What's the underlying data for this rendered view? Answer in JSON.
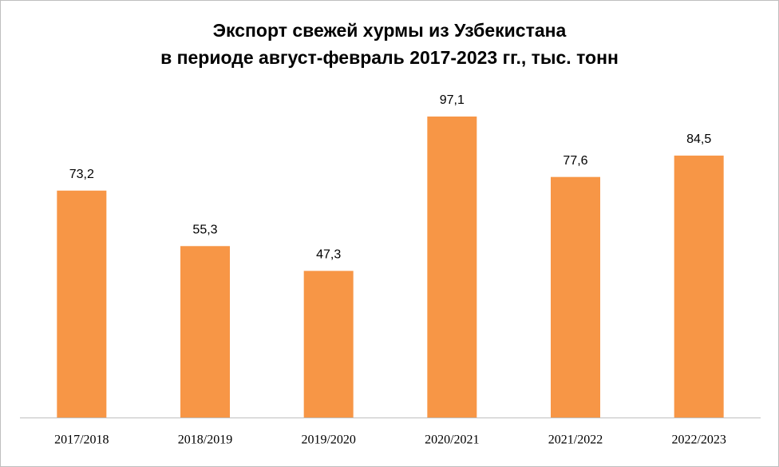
{
  "chart_data": {
    "type": "bar",
    "title": "Экспорт свежей хурмы из Узбекистана",
    "subtitle": "в периоде август-февраль 2017-2023 гг., тыс. тонн",
    "categories": [
      "2017/2018",
      "2018/2019",
      "2019/2020",
      "2020/2021",
      "2021/2022",
      "2022/2023"
    ],
    "values": [
      73.2,
      55.3,
      47.3,
      97.1,
      77.6,
      84.5
    ],
    "value_labels": [
      "73,2",
      "55,3",
      "47,3",
      "97,1",
      "77,6",
      "84,5"
    ],
    "color": "#f79646"
  }
}
